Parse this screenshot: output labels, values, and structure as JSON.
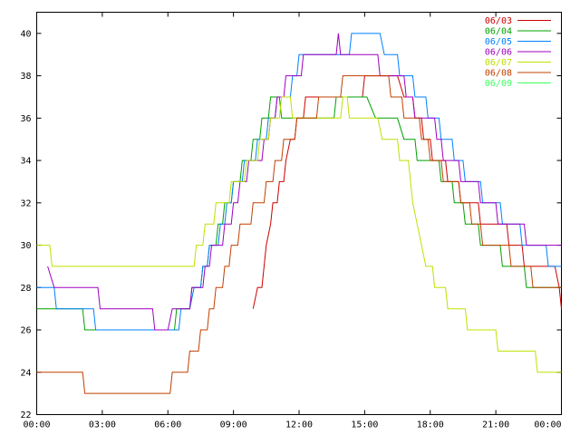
{
  "chart_data": {
    "type": "line",
    "title": "",
    "xlabel": "",
    "ylabel": "",
    "xlim": [
      0,
      24
    ],
    "ylim": [
      22,
      41
    ],
    "grid": false,
    "legend_placement": "top-right",
    "x_ticks": [
      {
        "value": 0,
        "label": "00:00"
      },
      {
        "value": 3,
        "label": "03:00"
      },
      {
        "value": 6,
        "label": "06:00"
      },
      {
        "value": 9,
        "label": "09:00"
      },
      {
        "value": 12,
        "label": "12:00"
      },
      {
        "value": 15,
        "label": "15:00"
      },
      {
        "value": 18,
        "label": "18:00"
      },
      {
        "value": 21,
        "label": "21:00"
      },
      {
        "value": 24,
        "label": "00:00"
      }
    ],
    "y_ticks": [
      22,
      24,
      26,
      28,
      30,
      32,
      34,
      36,
      38,
      40
    ],
    "series": [
      {
        "name": "06/03",
        "color": "#cc0000",
        "points": [
          [
            9.9,
            27
          ],
          [
            10.1,
            28
          ],
          [
            10.3,
            28
          ],
          [
            10.4,
            29
          ],
          [
            10.5,
            30
          ],
          [
            10.7,
            31
          ],
          [
            10.8,
            32
          ],
          [
            11,
            32
          ],
          [
            11.1,
            33
          ],
          [
            11.3,
            33
          ],
          [
            11.4,
            34
          ],
          [
            11.6,
            35
          ],
          [
            11.8,
            35
          ],
          [
            11.9,
            36
          ],
          [
            12.2,
            36
          ],
          [
            12.3,
            37
          ],
          [
            14.9,
            37
          ],
          [
            15.0,
            38
          ],
          [
            16.5,
            38
          ],
          [
            16.8,
            37
          ],
          [
            17.2,
            37
          ],
          [
            17.3,
            36
          ],
          [
            17.6,
            36
          ],
          [
            17.7,
            35
          ],
          [
            18.0,
            35
          ],
          [
            18.1,
            34
          ],
          [
            18.7,
            34
          ],
          [
            18.8,
            33
          ],
          [
            19.3,
            33
          ],
          [
            19.4,
            32
          ],
          [
            20.2,
            32
          ],
          [
            20.3,
            31
          ],
          [
            21.5,
            31
          ],
          [
            21.6,
            30
          ],
          [
            22.2,
            30
          ],
          [
            22.3,
            29
          ],
          [
            23.7,
            29
          ],
          [
            23.9,
            28
          ],
          [
            24,
            27
          ]
        ]
      },
      {
        "name": "06/04",
        "color": "#00a000",
        "points": [
          [
            0,
            27
          ],
          [
            2.1,
            27
          ],
          [
            2.2,
            26
          ],
          [
            6.3,
            26
          ],
          [
            6.4,
            27
          ],
          [
            7.0,
            27
          ],
          [
            7.1,
            28
          ],
          [
            7.5,
            28
          ],
          [
            7.6,
            29
          ],
          [
            7.8,
            29
          ],
          [
            7.9,
            30
          ],
          [
            8.2,
            30
          ],
          [
            8.3,
            31
          ],
          [
            8.5,
            31
          ],
          [
            8.6,
            32
          ],
          [
            8.9,
            32
          ],
          [
            9.0,
            33
          ],
          [
            9.3,
            33
          ],
          [
            9.4,
            34
          ],
          [
            9.8,
            34
          ],
          [
            9.9,
            35
          ],
          [
            10.2,
            35
          ],
          [
            10.3,
            36
          ],
          [
            10.6,
            36
          ],
          [
            10.7,
            37
          ],
          [
            11.1,
            37
          ],
          [
            11.2,
            36
          ],
          [
            13.6,
            36
          ],
          [
            13.7,
            37
          ],
          [
            15.1,
            37
          ],
          [
            15.5,
            36
          ],
          [
            16.5,
            36
          ],
          [
            16.8,
            35
          ],
          [
            17.3,
            35
          ],
          [
            17.4,
            34
          ],
          [
            18.4,
            34
          ],
          [
            18.5,
            33
          ],
          [
            19.0,
            33
          ],
          [
            19.1,
            32
          ],
          [
            19.5,
            32
          ],
          [
            19.6,
            31
          ],
          [
            20.2,
            31
          ],
          [
            20.3,
            30
          ],
          [
            21.2,
            30
          ],
          [
            21.3,
            29
          ],
          [
            22.3,
            29
          ],
          [
            22.4,
            28
          ],
          [
            24,
            28
          ]
        ]
      },
      {
        "name": "06/05",
        "color": "#0080ff",
        "points": [
          [
            0,
            28
          ],
          [
            0.8,
            28
          ],
          [
            0.9,
            27
          ],
          [
            2.6,
            27
          ],
          [
            2.7,
            26
          ],
          [
            6.5,
            26
          ],
          [
            6.6,
            27
          ],
          [
            7.0,
            27
          ],
          [
            7.2,
            28
          ],
          [
            7.5,
            28
          ],
          [
            7.6,
            29
          ],
          [
            7.8,
            29
          ],
          [
            7.9,
            30
          ],
          [
            8.3,
            30
          ],
          [
            8.4,
            31
          ],
          [
            8.6,
            31
          ],
          [
            8.7,
            32
          ],
          [
            8.9,
            32
          ],
          [
            9.0,
            33
          ],
          [
            9.4,
            33
          ],
          [
            9.5,
            34
          ],
          [
            10.0,
            34
          ],
          [
            10.1,
            35
          ],
          [
            10.5,
            35
          ],
          [
            10.6,
            36
          ],
          [
            10.9,
            36
          ],
          [
            11.0,
            37
          ],
          [
            11.6,
            37
          ],
          [
            11.7,
            38
          ],
          [
            11.9,
            38
          ],
          [
            12.0,
            39
          ],
          [
            14.3,
            39
          ],
          [
            14.4,
            40
          ],
          [
            15.7,
            40
          ],
          [
            15.9,
            39
          ],
          [
            16.5,
            39
          ],
          [
            16.6,
            38
          ],
          [
            17.2,
            38
          ],
          [
            17.3,
            37
          ],
          [
            17.8,
            37
          ],
          [
            17.9,
            36
          ],
          [
            18.4,
            36
          ],
          [
            18.5,
            35
          ],
          [
            19.0,
            35
          ],
          [
            19.1,
            34
          ],
          [
            19.5,
            34
          ],
          [
            19.6,
            33
          ],
          [
            20.3,
            33
          ],
          [
            20.4,
            32
          ],
          [
            21.2,
            32
          ],
          [
            21.3,
            31
          ],
          [
            22.1,
            31
          ],
          [
            22.2,
            30
          ],
          [
            23.3,
            30
          ],
          [
            23.4,
            29
          ],
          [
            24,
            29
          ]
        ]
      },
      {
        "name": "06/06",
        "color": "#a000c0",
        "points": [
          [
            0.5,
            29
          ],
          [
            0.8,
            28
          ],
          [
            2.8,
            28
          ],
          [
            2.9,
            27
          ],
          [
            5.3,
            27
          ],
          [
            5.4,
            26
          ],
          [
            6.0,
            26
          ],
          [
            6.2,
            27
          ],
          [
            7.0,
            27
          ],
          [
            7.1,
            28
          ],
          [
            7.6,
            28
          ],
          [
            7.7,
            29
          ],
          [
            7.9,
            29
          ],
          [
            8.0,
            30
          ],
          [
            8.5,
            30
          ],
          [
            8.6,
            31
          ],
          [
            8.9,
            31
          ],
          [
            9.0,
            32
          ],
          [
            9.2,
            32
          ],
          [
            9.3,
            33
          ],
          [
            9.6,
            33
          ],
          [
            9.7,
            34
          ],
          [
            10.3,
            34
          ],
          [
            10.4,
            35
          ],
          [
            10.6,
            35
          ],
          [
            10.7,
            36
          ],
          [
            10.9,
            36
          ],
          [
            11.0,
            37
          ],
          [
            11.3,
            37
          ],
          [
            11.4,
            38
          ],
          [
            12.1,
            38
          ],
          [
            12.2,
            39
          ],
          [
            13.7,
            39
          ],
          [
            13.8,
            40
          ],
          [
            13.9,
            39
          ],
          [
            15.6,
            39
          ],
          [
            15.7,
            38
          ],
          [
            16.8,
            38
          ],
          [
            16.9,
            37
          ],
          [
            17.2,
            37
          ],
          [
            17.3,
            36
          ],
          [
            18.2,
            36
          ],
          [
            18.3,
            35
          ],
          [
            18.5,
            35
          ],
          [
            18.6,
            34
          ],
          [
            19.3,
            34
          ],
          [
            19.4,
            33
          ],
          [
            20.2,
            33
          ],
          [
            20.3,
            32
          ],
          [
            21.0,
            32
          ],
          [
            21.1,
            31
          ],
          [
            22.3,
            31
          ],
          [
            22.4,
            30
          ],
          [
            24,
            30
          ]
        ]
      },
      {
        "name": "06/07",
        "color": "#c0e000",
        "points": [
          [
            0,
            30
          ],
          [
            0.6,
            30
          ],
          [
            0.7,
            29
          ],
          [
            7.2,
            29
          ],
          [
            7.3,
            30
          ],
          [
            7.6,
            30
          ],
          [
            7.7,
            31
          ],
          [
            8.1,
            31
          ],
          [
            8.2,
            32
          ],
          [
            8.8,
            32
          ],
          [
            8.9,
            33
          ],
          [
            9.5,
            33
          ],
          [
            9.6,
            34
          ],
          [
            10.1,
            34
          ],
          [
            10.2,
            35
          ],
          [
            10.6,
            35
          ],
          [
            10.7,
            36
          ],
          [
            11.1,
            36
          ],
          [
            11.2,
            37
          ],
          [
            11.6,
            37
          ],
          [
            11.7,
            36
          ],
          [
            13.9,
            36
          ],
          [
            14.0,
            37
          ],
          [
            14.2,
            37
          ],
          [
            14.3,
            36
          ],
          [
            15.6,
            36
          ],
          [
            15.8,
            35
          ],
          [
            16.5,
            35
          ],
          [
            16.6,
            34
          ],
          [
            17.0,
            34
          ],
          [
            17.1,
            33
          ],
          [
            17.2,
            32
          ],
          [
            17.4,
            31
          ],
          [
            17.6,
            30
          ],
          [
            17.8,
            29
          ],
          [
            18.1,
            29
          ],
          [
            18.2,
            28
          ],
          [
            18.7,
            28
          ],
          [
            18.8,
            27
          ],
          [
            19.6,
            27
          ],
          [
            19.7,
            26
          ],
          [
            21.0,
            26
          ],
          [
            21.1,
            25
          ],
          [
            22.8,
            25
          ],
          [
            22.9,
            24
          ],
          [
            24,
            24
          ]
        ]
      },
      {
        "name": "06/08",
        "color": "#c04000",
        "points": [
          [
            0,
            24
          ],
          [
            2.1,
            24
          ],
          [
            2.2,
            23
          ],
          [
            6.1,
            23
          ],
          [
            6.2,
            24
          ],
          [
            6.9,
            24
          ],
          [
            7.0,
            25
          ],
          [
            7.4,
            25
          ],
          [
            7.5,
            26
          ],
          [
            7.8,
            26
          ],
          [
            7.9,
            27
          ],
          [
            8.1,
            27
          ],
          [
            8.2,
            28
          ],
          [
            8.5,
            28
          ],
          [
            8.6,
            29
          ],
          [
            8.8,
            29
          ],
          [
            8.9,
            30
          ],
          [
            9.2,
            30
          ],
          [
            9.3,
            31
          ],
          [
            9.8,
            31
          ],
          [
            9.9,
            32
          ],
          [
            10.4,
            32
          ],
          [
            10.5,
            33
          ],
          [
            10.8,
            33
          ],
          [
            10.9,
            34
          ],
          [
            11.2,
            34
          ],
          [
            11.3,
            35
          ],
          [
            11.8,
            35
          ],
          [
            11.9,
            36
          ],
          [
            12.8,
            36
          ],
          [
            12.9,
            37
          ],
          [
            13.9,
            37
          ],
          [
            14.0,
            38
          ],
          [
            16.1,
            38
          ],
          [
            16.2,
            37
          ],
          [
            16.7,
            37
          ],
          [
            16.8,
            36
          ],
          [
            17.5,
            36
          ],
          [
            17.6,
            35
          ],
          [
            17.9,
            35
          ],
          [
            18.0,
            34
          ],
          [
            18.5,
            34
          ],
          [
            18.6,
            33
          ],
          [
            19.3,
            33
          ],
          [
            19.4,
            32
          ],
          [
            19.8,
            32
          ],
          [
            19.9,
            31
          ],
          [
            20.3,
            31
          ],
          [
            20.4,
            30
          ],
          [
            21.6,
            30
          ],
          [
            21.7,
            29
          ],
          [
            22.6,
            29
          ],
          [
            22.7,
            28
          ],
          [
            24,
            28
          ]
        ]
      },
      {
        "name": "06/09",
        "color": "#40ff60",
        "points": []
      }
    ]
  }
}
